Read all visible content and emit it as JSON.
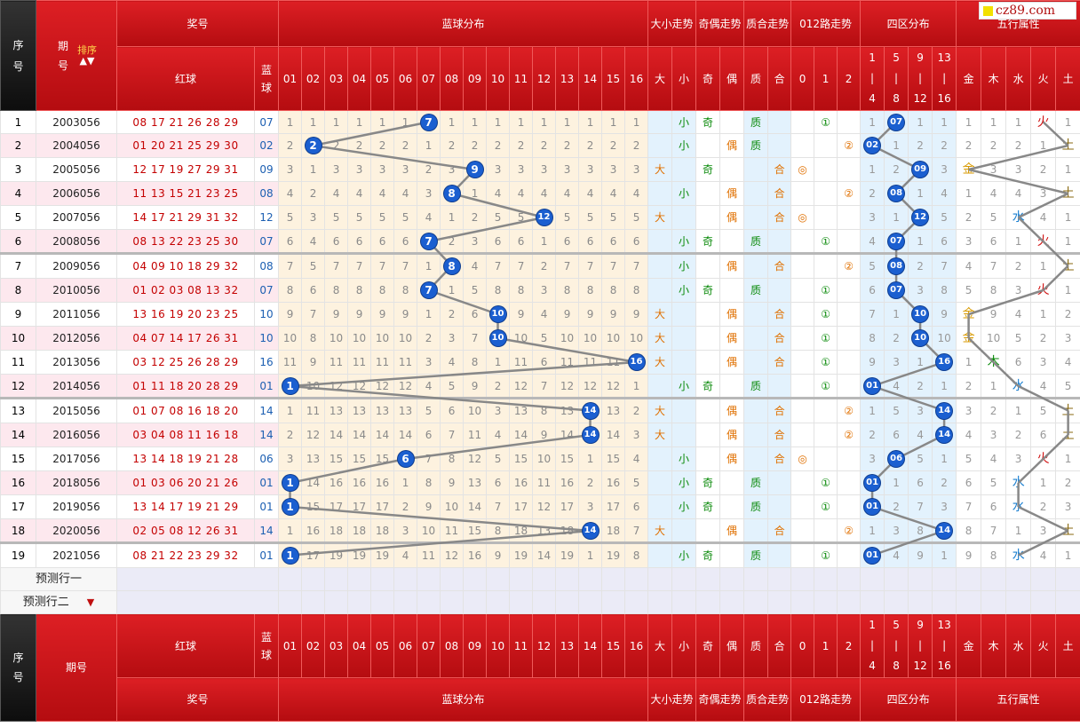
{
  "site": {
    "logo": "cz89.com"
  },
  "header": {
    "seq": "序号",
    "period": "期号",
    "sort_label": "排序",
    "award": "奖号",
    "blue_dist": "蓝球分布",
    "size": "大小走势",
    "odd": "奇偶走势",
    "prime": "质合走势",
    "road": "012路走势",
    "zone": "四区分布",
    "wuxing": "五行属性",
    "red": "红球",
    "blue": "蓝球",
    "nums": [
      "01",
      "02",
      "03",
      "04",
      "05",
      "06",
      "07",
      "08",
      "09",
      "10",
      "11",
      "12",
      "13",
      "14",
      "15",
      "16"
    ],
    "size_cols": [
      "大",
      "小"
    ],
    "odd_cols": [
      "奇",
      "偶"
    ],
    "prime_cols": [
      "质",
      "合"
    ],
    "road_cols": [
      "0",
      "1",
      "2"
    ],
    "zone_cols": [
      [
        "1",
        "|",
        "4"
      ],
      [
        "5",
        "|",
        "8"
      ],
      [
        "9",
        "|",
        "12"
      ],
      [
        "13",
        "|",
        "16"
      ]
    ],
    "wx_cols": [
      "金",
      "木",
      "水",
      "火",
      "土"
    ]
  },
  "rows": [
    {
      "seq": "1",
      "period": "2003056",
      "red": "08 17 21 26 28 29",
      "blue": "07",
      "bv": 7,
      "miss": [
        1,
        1,
        1,
        1,
        1,
        1,
        0,
        1,
        1,
        1,
        1,
        1,
        1,
        1,
        1,
        1
      ],
      "size": "小",
      "odd": "奇",
      "prime": "质",
      "road": "①",
      "road_i": 1,
      "zmiss": [
        1,
        0,
        1,
        1
      ],
      "wx": "火",
      "wxi": 3,
      "wxmiss": [
        1,
        1,
        1,
        0,
        1
      ]
    },
    {
      "seq": "2",
      "period": "2004056",
      "red": "01 20 21 25 29 30",
      "blue": "02",
      "bv": 2,
      "miss": [
        2,
        0,
        2,
        2,
        2,
        2,
        1,
        2,
        2,
        2,
        2,
        2,
        2,
        2,
        2,
        2
      ],
      "size": "小",
      "odd": "偶",
      "prime": "质",
      "road": "②",
      "road_i": 2,
      "zmiss": [
        0,
        1,
        2,
        2
      ],
      "wx": "土",
      "wxi": 4,
      "wxmiss": [
        2,
        2,
        2,
        1,
        0
      ]
    },
    {
      "seq": "3",
      "period": "2005056",
      "red": "12 17 19 27 29 31",
      "blue": "09",
      "bv": 9,
      "miss": [
        3,
        1,
        3,
        3,
        3,
        3,
        2,
        3,
        0,
        3,
        3,
        3,
        3,
        3,
        3,
        3
      ],
      "size": "大",
      "odd": "奇",
      "prime": "合",
      "road": "◎",
      "road_i": 0,
      "zmiss": [
        1,
        2,
        0,
        3
      ],
      "wx": "金",
      "wxi": 0,
      "wxmiss": [
        0,
        3,
        3,
        2,
        1
      ]
    },
    {
      "seq": "4",
      "period": "2006056",
      "red": "11 13 15 21 23 25",
      "blue": "08",
      "bv": 8,
      "miss": [
        4,
        2,
        4,
        4,
        4,
        4,
        3,
        0,
        1,
        4,
        4,
        4,
        4,
        4,
        4,
        4
      ],
      "size": "小",
      "odd": "偶",
      "prime": "合",
      "road": "②",
      "road_i": 2,
      "zmiss": [
        2,
        0,
        1,
        4
      ],
      "wx": "土",
      "wxi": 4,
      "wxmiss": [
        1,
        4,
        4,
        3,
        0
      ]
    },
    {
      "seq": "5",
      "period": "2007056",
      "red": "14 17 21 29 31 32",
      "blue": "12",
      "bv": 12,
      "miss": [
        5,
        3,
        5,
        5,
        5,
        5,
        4,
        1,
        2,
        5,
        5,
        0,
        5,
        5,
        5,
        5
      ],
      "size": "大",
      "odd": "偶",
      "prime": "合",
      "road": "◎",
      "road_i": 0,
      "zmiss": [
        3,
        1,
        0,
        5
      ],
      "wx": "水",
      "wxi": 2,
      "wxmiss": [
        2,
        5,
        0,
        4,
        1
      ]
    },
    {
      "seq": "6",
      "period": "2008056",
      "red": "08 13 22 23 25 30",
      "blue": "07",
      "bv": 7,
      "miss": [
        6,
        4,
        6,
        6,
        6,
        6,
        0,
        2,
        3,
        6,
        6,
        1,
        6,
        6,
        6,
        6
      ],
      "size": "小",
      "odd": "奇",
      "prime": "质",
      "road": "①",
      "road_i": 1,
      "zmiss": [
        4,
        0,
        1,
        6
      ],
      "wx": "火",
      "wxi": 3,
      "wxmiss": [
        3,
        6,
        1,
        0,
        1
      ]
    },
    {
      "seq": "7",
      "period": "2009056",
      "red": "04 09 10 18 29 32",
      "blue": "08",
      "bv": 8,
      "miss": [
        7,
        5,
        7,
        7,
        7,
        7,
        1,
        0,
        4,
        7,
        7,
        2,
        7,
        7,
        7,
        7
      ],
      "size": "小",
      "odd": "偶",
      "prime": "合",
      "road": "②",
      "road_i": 2,
      "zmiss": [
        5,
        0,
        2,
        7
      ],
      "wx": "土",
      "wxi": 4,
      "wxmiss": [
        4,
        7,
        2,
        1,
        0
      ]
    },
    {
      "seq": "8",
      "period": "2010056",
      "red": "01 02 03 08 13 32",
      "blue": "07",
      "bv": 7,
      "miss": [
        8,
        6,
        8,
        8,
        8,
        8,
        0,
        1,
        5,
        8,
        8,
        3,
        8,
        8,
        8,
        8
      ],
      "size": "小",
      "odd": "奇",
      "prime": "质",
      "road": "①",
      "road_i": 1,
      "zmiss": [
        6,
        0,
        3,
        8
      ],
      "wx": "火",
      "wxi": 3,
      "wxmiss": [
        5,
        8,
        3,
        0,
        1
      ]
    },
    {
      "seq": "9",
      "period": "2011056",
      "red": "13 16 19 20 23 25",
      "blue": "10",
      "bv": 10,
      "miss": [
        9,
        7,
        9,
        9,
        9,
        9,
        1,
        2,
        6,
        0,
        9,
        4,
        9,
        9,
        9,
        9
      ],
      "size": "大",
      "odd": "偶",
      "prime": "合",
      "road": "①",
      "road_i": 1,
      "zmiss": [
        7,
        1,
        0,
        9
      ],
      "wx": "金",
      "wxi": 0,
      "wxmiss": [
        0,
        9,
        4,
        1,
        2
      ]
    },
    {
      "seq": "10",
      "period": "2012056",
      "red": "04 07 14 17 26 31",
      "blue": "10",
      "bv": 10,
      "miss": [
        10,
        8,
        10,
        10,
        10,
        10,
        2,
        3,
        7,
        0,
        10,
        5,
        10,
        10,
        10,
        10
      ],
      "size": "大",
      "odd": "偶",
      "prime": "合",
      "road": "①",
      "road_i": 1,
      "zmiss": [
        8,
        2,
        0,
        10
      ],
      "wx": "金",
      "wxi": 0,
      "wxmiss": [
        0,
        10,
        5,
        2,
        3
      ]
    },
    {
      "seq": "11",
      "period": "2013056",
      "red": "03 12 25 26 28 29",
      "blue": "16",
      "bv": 16,
      "miss": [
        11,
        9,
        11,
        11,
        11,
        11,
        3,
        4,
        8,
        1,
        11,
        6,
        11,
        11,
        11,
        0
      ],
      "size": "大",
      "odd": "偶",
      "prime": "合",
      "road": "①",
      "road_i": 1,
      "zmiss": [
        9,
        3,
        1,
        0
      ],
      "wx": "木",
      "wxi": 1,
      "wxmiss": [
        1,
        0,
        6,
        3,
        4
      ]
    },
    {
      "seq": "12",
      "period": "2014056",
      "red": "01 11 18 20 28 29",
      "blue": "01",
      "bv": 1,
      "miss": [
        0,
        10,
        12,
        12,
        12,
        12,
        4,
        5,
        9,
        2,
        12,
        7,
        12,
        12,
        12,
        1
      ],
      "size": "小",
      "odd": "奇",
      "prime": "质",
      "road": "①",
      "road_i": 1,
      "zmiss": [
        0,
        4,
        2,
        1
      ],
      "wx": "水",
      "wxi": 2,
      "wxmiss": [
        2,
        1,
        0,
        4,
        5
      ]
    },
    {
      "seq": "13",
      "period": "2015056",
      "red": "01 07 08 16 18 20",
      "blue": "14",
      "bv": 14,
      "miss": [
        1,
        11,
        13,
        13,
        13,
        13,
        5,
        6,
        10,
        3,
        13,
        8,
        13,
        0,
        13,
        2
      ],
      "size": "大",
      "odd": "偶",
      "prime": "合",
      "road": "②",
      "road_i": 2,
      "zmiss": [
        1,
        5,
        3,
        0
      ],
      "wx": "土",
      "wxi": 4,
      "wxmiss": [
        3,
        2,
        1,
        5,
        0
      ]
    },
    {
      "seq": "14",
      "period": "2016056",
      "red": "03 04 08 11 16 18",
      "blue": "14",
      "bv": 14,
      "miss": [
        2,
        12,
        14,
        14,
        14,
        14,
        6,
        7,
        11,
        4,
        14,
        9,
        14,
        0,
        14,
        3
      ],
      "size": "大",
      "odd": "偶",
      "prime": "合",
      "road": "②",
      "road_i": 2,
      "zmiss": [
        2,
        6,
        4,
        0
      ],
      "wx": "土",
      "wxi": 4,
      "wxmiss": [
        4,
        3,
        2,
        6,
        0
      ]
    },
    {
      "seq": "15",
      "period": "2017056",
      "red": "13 14 18 19 21 28",
      "blue": "06",
      "bv": 6,
      "miss": [
        3,
        13,
        15,
        15,
        15,
        0,
        7,
        8,
        12,
        5,
        15,
        10,
        15,
        1,
        15,
        4
      ],
      "size": "小",
      "odd": "偶",
      "prime": "合",
      "road": "◎",
      "road_i": 0,
      "zmiss": [
        3,
        0,
        5,
        1
      ],
      "wx": "火",
      "wxi": 3,
      "wxmiss": [
        5,
        4,
        3,
        0,
        1
      ]
    },
    {
      "seq": "16",
      "period": "2018056",
      "red": "01 03 06 20 21 26",
      "blue": "01",
      "bv": 1,
      "miss": [
        0,
        14,
        16,
        16,
        16,
        1,
        8,
        9,
        13,
        6,
        16,
        11,
        16,
        2,
        16,
        5
      ],
      "size": "小",
      "odd": "奇",
      "prime": "质",
      "road": "①",
      "road_i": 1,
      "zmiss": [
        0,
        1,
        6,
        2
      ],
      "wx": "水",
      "wxi": 2,
      "wxmiss": [
        6,
        5,
        0,
        1,
        2
      ]
    },
    {
      "seq": "17",
      "period": "2019056",
      "red": "13 14 17 19 21 29",
      "blue": "01",
      "bv": 1,
      "miss": [
        0,
        15,
        17,
        17,
        17,
        2,
        9,
        10,
        14,
        7,
        17,
        12,
        17,
        3,
        17,
        6
      ],
      "size": "小",
      "odd": "奇",
      "prime": "质",
      "road": "①",
      "road_i": 1,
      "zmiss": [
        0,
        2,
        7,
        3
      ],
      "wx": "水",
      "wxi": 2,
      "wxmiss": [
        7,
        6,
        0,
        2,
        3
      ]
    },
    {
      "seq": "18",
      "period": "2020056",
      "red": "02 05 08 12 26 31",
      "blue": "14",
      "bv": 14,
      "miss": [
        1,
        16,
        18,
        18,
        18,
        3,
        10,
        11,
        15,
        8,
        18,
        13,
        18,
        0,
        18,
        7
      ],
      "size": "大",
      "odd": "偶",
      "prime": "合",
      "road": "②",
      "road_i": 2,
      "zmiss": [
        1,
        3,
        8,
        0
      ],
      "wx": "土",
      "wxi": 4,
      "wxmiss": [
        8,
        7,
        1,
        3,
        0
      ]
    },
    {
      "seq": "19",
      "period": "2021056",
      "red": "08 21 22 23 29 32",
      "blue": "01",
      "bv": 1,
      "miss": [
        0,
        17,
        19,
        19,
        19,
        4,
        11,
        12,
        16,
        9,
        19,
        14,
        19,
        1,
        19,
        8
      ],
      "size": "小",
      "odd": "奇",
      "prime": "质",
      "road": "①",
      "road_i": 1,
      "zmiss": [
        0,
        4,
        9,
        1
      ],
      "wx": "水",
      "wxi": 2,
      "wxmiss": [
        9,
        8,
        0,
        4,
        1
      ]
    }
  ],
  "predict": [
    "预测行一",
    "预测行二"
  ],
  "colors": {
    "ball": "#1b5fd0",
    "header_red": "#c8161b",
    "line": "#888888"
  }
}
